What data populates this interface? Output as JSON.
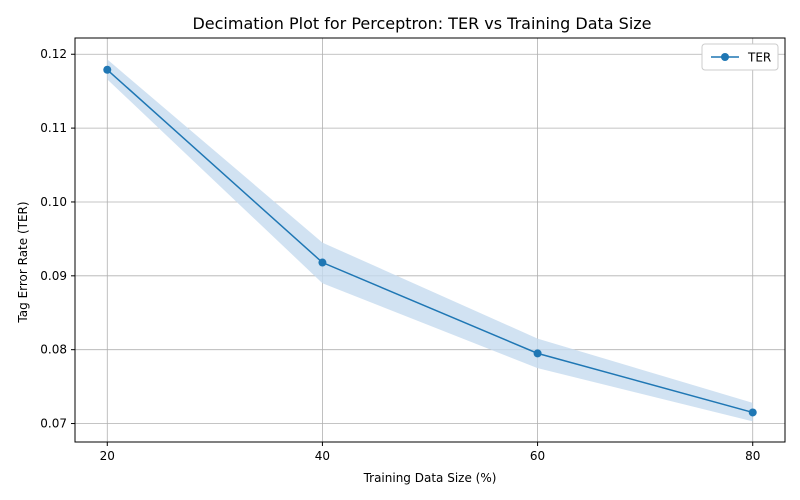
{
  "chart_data": {
    "type": "line",
    "title": "Decimation Plot for Perceptron: TER vs Training Data Size",
    "xlabel": "Training Data Size (%)",
    "ylabel": "Tag Error Rate (TER)",
    "x": [
      20,
      40,
      60,
      80
    ],
    "xticks": [
      20,
      40,
      60,
      80
    ],
    "yticks": [
      0.07,
      0.08,
      0.09,
      0.1,
      0.11,
      0.12
    ],
    "ytick_labels": [
      "0.07",
      "0.08",
      "0.09",
      "0.10",
      "0.11",
      "0.12"
    ],
    "xlim": [
      17,
      83
    ],
    "ylim": [
      0.0675,
      0.1222
    ],
    "series": [
      {
        "name": "TER",
        "values": [
          0.1179,
          0.0918,
          0.0795,
          0.0715
        ],
        "band_upper": [
          0.1193,
          0.0945,
          0.0815,
          0.0728
        ],
        "band_lower": [
          0.1166,
          0.089,
          0.0775,
          0.0703
        ]
      }
    ],
    "grid": true,
    "legend_position": "top-right",
    "colors": {
      "line": "#1f77b4",
      "band": "#c6dbef",
      "grid": "#b0b0b0"
    }
  }
}
